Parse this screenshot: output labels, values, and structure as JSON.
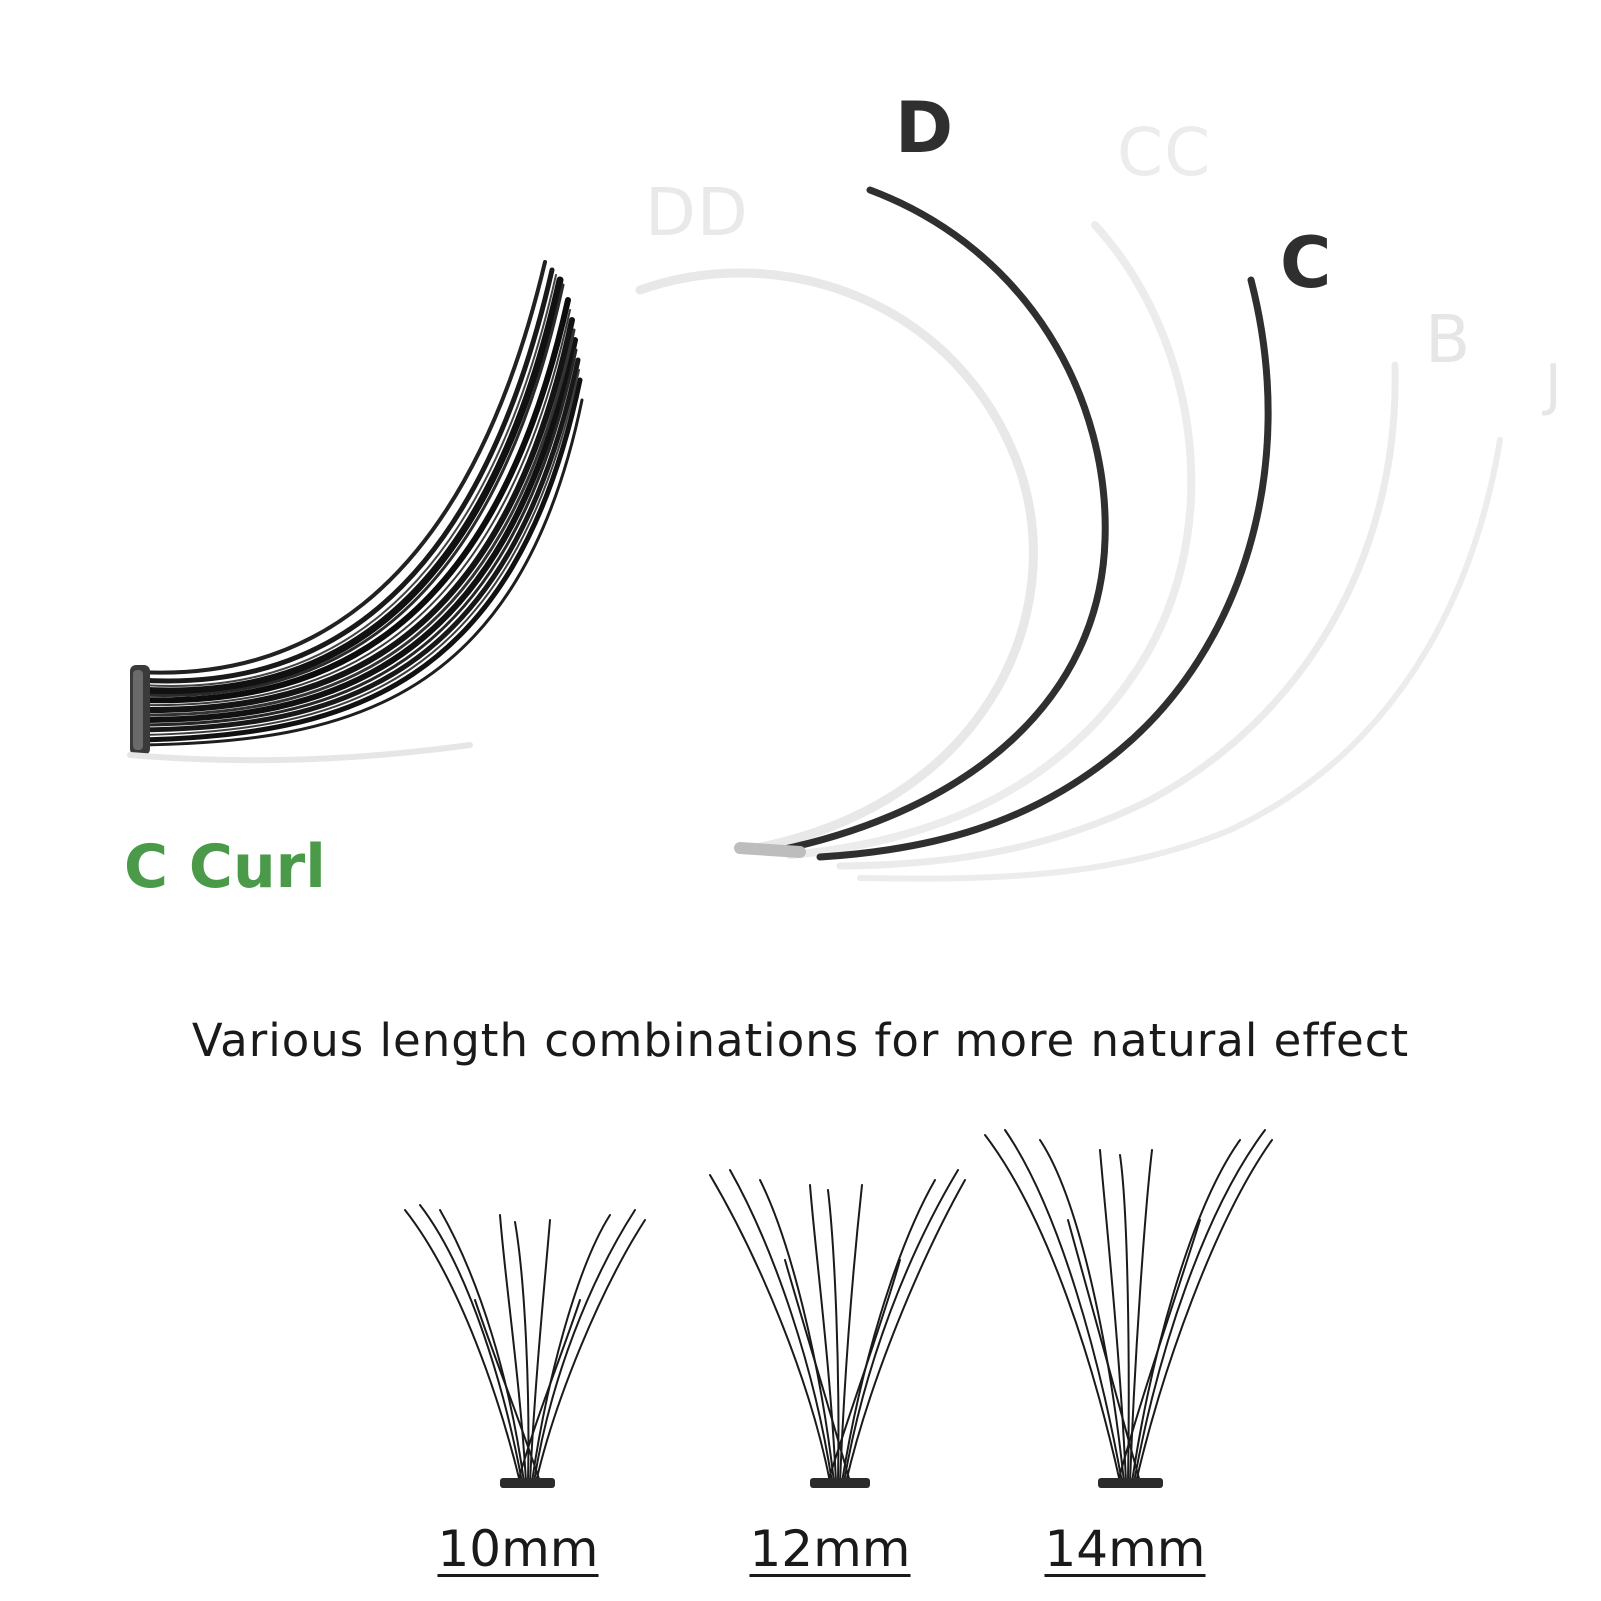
{
  "curl_types": {
    "d": "D",
    "dd": "DD",
    "cc": "CC",
    "c": "C",
    "b": "B",
    "j": "J"
  },
  "selected_curl": "C Curl",
  "tagline": "Various length combinations for more natural effect",
  "lengths": [
    "10mm",
    "12mm",
    "14mm"
  ],
  "colors": {
    "accent_green": "#4a9a4a",
    "active_curve": "#2f2f2f",
    "inactive_curve": "#e8e8e8",
    "text": "#1a1a1a"
  }
}
